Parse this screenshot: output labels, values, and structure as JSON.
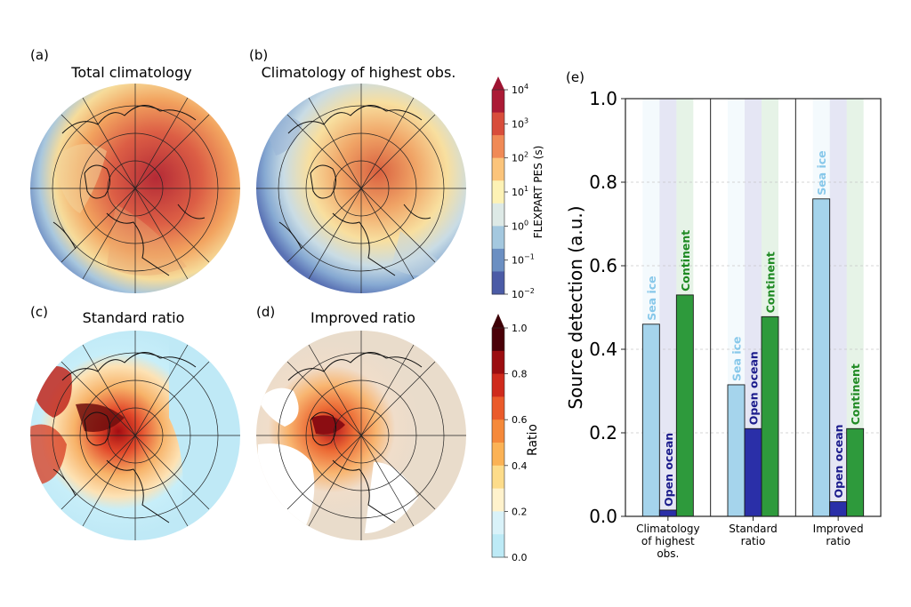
{
  "panels": {
    "a": {
      "tag": "(a)",
      "title": "Total climatology"
    },
    "b": {
      "tag": "(b)",
      "title": "Climatology of highest obs."
    },
    "c": {
      "tag": "(c)",
      "title": "Standard ratio"
    },
    "d": {
      "tag": "(d)",
      "title": "Improved ratio"
    },
    "e": {
      "tag": "(e)"
    }
  },
  "colorbars": {
    "pes": {
      "label": "FLEXPART PES (s)",
      "ticks": [
        {
          "base": "10",
          "exp": "4"
        },
        {
          "base": "10",
          "exp": "3"
        },
        {
          "base": "10",
          "exp": "2"
        },
        {
          "base": "10",
          "exp": "1"
        },
        {
          "base": "10",
          "exp": "0"
        },
        {
          "base": "10",
          "exp": "−1"
        },
        {
          "base": "10",
          "exp": "−2"
        }
      ],
      "colors": [
        "#ab1a35",
        "#d84d3b",
        "#f08a56",
        "#fbc47b",
        "#fdf2b5",
        "#dde9e6",
        "#a4c8df",
        "#6b8fc2",
        "#4b5ba6"
      ]
    },
    "ratio": {
      "label": "Ratio",
      "ticks": [
        "1.0",
        "0.8",
        "0.6",
        "0.4",
        "0.2",
        "0.0"
      ],
      "colors": [
        "#4a0008",
        "#9b0d10",
        "#cf2a1c",
        "#ea5a2a",
        "#f5893a",
        "#fbb255",
        "#fddc8a",
        "#fff2cc",
        "#d9f2f9",
        "#bdeaf6"
      ]
    }
  },
  "chart_data": {
    "type": "bar",
    "ylabel": "Source detection (a.u.)",
    "ylim": [
      0,
      1.0
    ],
    "yticks": [
      "0.0",
      "0.2",
      "0.4",
      "0.6",
      "0.8",
      "1.0"
    ],
    "grid": "horizontal dashed",
    "categories": [
      {
        "label_lines": [
          "Climatology",
          "of highest",
          "obs."
        ]
      },
      {
        "label_lines": [
          "Standard",
          "ratio"
        ]
      },
      {
        "label_lines": [
          "Improved",
          "ratio"
        ]
      }
    ],
    "series": [
      {
        "name": "Sea ice",
        "color": "#a5d4ec",
        "label_color": "#87c8ea",
        "values": [
          0.46,
          0.315,
          0.76
        ]
      },
      {
        "name": "Open ocean",
        "color": "#2a2fa8",
        "label_color": "#1c1c8c",
        "values": [
          0.015,
          0.21,
          0.035
        ]
      },
      {
        "name": "Continent",
        "color": "#2e9a3c",
        "label_color": "#1f8a23",
        "values": [
          0.53,
          0.478,
          0.21
        ]
      }
    ]
  }
}
